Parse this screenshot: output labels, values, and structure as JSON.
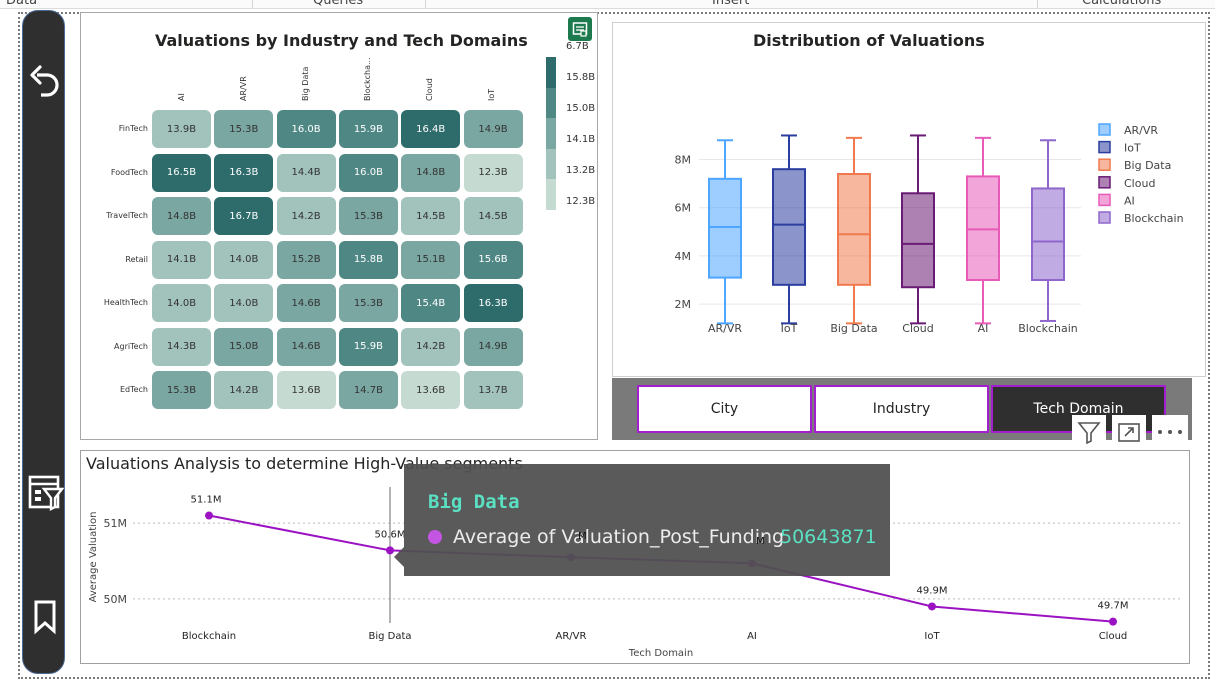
{
  "ribbon": {
    "tabs": [
      "Data",
      "Queries",
      "Insert",
      "Calculations"
    ]
  },
  "heatmap": {
    "title": "Valuations by Industry and Tech Domains",
    "columns": [
      "AI",
      "AR/VR",
      "Big Data",
      "Blockcha...",
      "Cloud",
      "IoT"
    ],
    "rows": [
      {
        "label": "FinTech",
        "values": [
          "13.9B",
          "15.3B",
          "16.0B",
          "15.9B",
          "16.4B",
          "14.9B"
        ]
      },
      {
        "label": "FoodTech",
        "values": [
          "16.5B",
          "16.3B",
          "14.4B",
          "16.0B",
          "14.8B",
          "12.3B"
        ]
      },
      {
        "label": "TravelTech",
        "values": [
          "14.8B",
          "16.7B",
          "14.2B",
          "15.3B",
          "14.5B",
          "14.5B"
        ]
      },
      {
        "label": "Retail",
        "values": [
          "14.1B",
          "14.0B",
          "15.2B",
          "15.8B",
          "15.1B",
          "15.6B"
        ]
      },
      {
        "label": "HealthTech",
        "values": [
          "14.0B",
          "14.0B",
          "14.6B",
          "15.3B",
          "15.4B",
          "16.3B"
        ]
      },
      {
        "label": "AgriTech",
        "values": [
          "14.3B",
          "15.0B",
          "14.6B",
          "15.9B",
          "14.2B",
          "14.9B"
        ]
      },
      {
        "label": "EdTech",
        "values": [
          "15.3B",
          "14.2B",
          "13.6B",
          "14.7B",
          "13.6B",
          "13.7B"
        ]
      }
    ],
    "legend_ticks": [
      "6.7B",
      "15.8B",
      "15.0B",
      "14.1B",
      "13.2B",
      "12.3B"
    ],
    "scale_colors": [
      "#2e6b6b",
      "#4f8784",
      "#7aa7a2",
      "#a2c3bc",
      "#c5dbd2"
    ]
  },
  "boxplot": {
    "title": "Distribution of Valuations",
    "yticks": [
      "8M",
      "6M",
      "4M",
      "2M"
    ],
    "chart_data": {
      "type": "box",
      "categories": [
        "AR/VR",
        "IoT",
        "Big Data",
        "Cloud",
        "AI",
        "Blockchain"
      ],
      "series": [
        {
          "name": "AR/VR",
          "min": 1.2,
          "q1": 3.1,
          "median": 5.2,
          "q3": 7.2,
          "max": 8.8,
          "color": "#4da6ff"
        },
        {
          "name": "IoT",
          "min": 1.2,
          "q1": 2.8,
          "median": 5.3,
          "q3": 7.6,
          "max": 9.0,
          "color": "#2b3ea0"
        },
        {
          "name": "Big Data",
          "min": 1.2,
          "q1": 2.8,
          "median": 4.9,
          "q3": 7.4,
          "max": 8.9,
          "color": "#f07a4e"
        },
        {
          "name": "Cloud",
          "min": 1.2,
          "q1": 2.7,
          "median": 4.5,
          "q3": 6.6,
          "max": 9.0,
          "color": "#6a1b75"
        },
        {
          "name": "AI",
          "min": 1.2,
          "q1": 3.0,
          "median": 5.1,
          "q3": 7.3,
          "max": 8.9,
          "color": "#e85bb8"
        },
        {
          "name": "Blockchain",
          "min": 1.3,
          "q1": 3.0,
          "median": 4.6,
          "q3": 6.8,
          "max": 8.8,
          "color": "#8e66cc"
        }
      ],
      "ylim": [
        0.8,
        9.6
      ]
    }
  },
  "slicer": {
    "items": [
      "City",
      "Industry",
      "Tech Domain"
    ],
    "selected": 2
  },
  "linechart": {
    "title": "Valuations Analysis to determine High-Value segments",
    "ylabel": "Average Valuation",
    "xlabel": "Tech Domain",
    "yticks": [
      "51M",
      "50M"
    ],
    "chart_data": {
      "type": "line",
      "categories": [
        "Blockchain",
        "Big Data",
        "AR/VR",
        "AI",
        "IoT",
        "Cloud"
      ],
      "values": [
        51.1,
        50.64,
        50.55,
        50.47,
        49.9,
        49.7
      ],
      "labels": [
        "51.1M",
        "50.6M",
        "",
        "",
        "49.9M",
        "49.7M"
      ],
      "ylim": [
        49.55,
        51.45
      ],
      "color": "#9b12c2"
    }
  },
  "tooltip": {
    "title": "Big Data",
    "label": "Average of Valuation_Post_Funding",
    "value": "50643871",
    "hidden_fragments": [
      "M",
      "M"
    ]
  }
}
